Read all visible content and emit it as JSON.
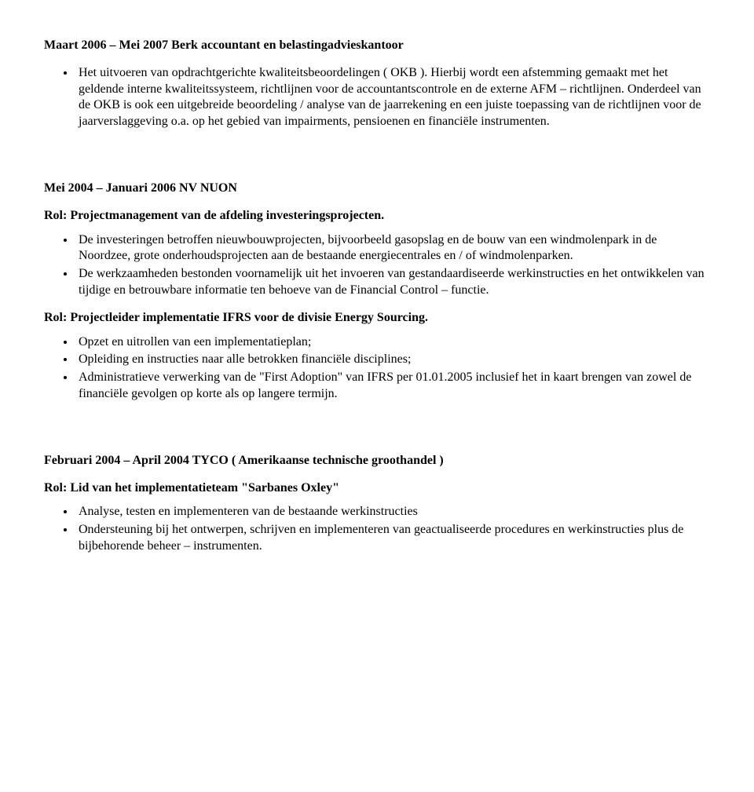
{
  "sections": [
    {
      "heading": "Maart 2006 – Mei 2007 Berk accountant en belastingadvieskantoor",
      "pre_bullets": [],
      "bullets": [
        "Het uitvoeren van opdrachtgerichte kwaliteitsbeoordelingen ( OKB ). Hierbij wordt een afstemming gemaakt met het geldende interne kwaliteitssysteem, richtlijnen voor de accountantscontrole en de externe AFM – richtlijnen. Onderdeel van de OKB is ook een uitgebreide beoordeling / analyse van de jaarrekening en een juiste toepassing van de richtlijnen voor de jaarverslaggeving o.a. op het gebied van impairments, pensioenen en financiële instrumenten."
      ]
    },
    {
      "heading": "Mei 2004 – Januari 2006 NV NUON",
      "roles": [
        {
          "role_heading": "Rol: Projectmanagement van de afdeling investeringsprojecten.",
          "bullets": [
            "De investeringen betroffen nieuwbouwprojecten, bijvoorbeeld gasopslag en de bouw van een windmolenpark in de Noordzee, grote onderhoudsprojecten aan de bestaande energiecentrales en / of windmolenparken.",
            "De werkzaamheden bestonden voornamelijk uit het invoeren van gestandaardiseerde werkinstructies en het ontwikkelen van tijdige en betrouwbare informatie ten behoeve van de Financial Control – functie."
          ]
        },
        {
          "role_heading": "Rol: Projectleider implementatie IFRS voor de divisie Energy Sourcing.",
          "bullets": [
            "Opzet en uitrollen van een implementatieplan;",
            "Opleiding en instructies naar alle betrokken financiële disciplines;",
            "Administratieve verwerking van de \"First Adoption\" van IFRS per 01.01.2005 inclusief het in kaart brengen van zowel de financiële gevolgen op korte als op langere termijn."
          ]
        }
      ]
    },
    {
      "heading": "Februari 2004 – April 2004 TYCO ( Amerikaanse technische groothandel )",
      "roles": [
        {
          "role_heading": "Rol: Lid van het implementatieteam \"Sarbanes Oxley\"",
          "bullets": [
            "Analyse, testen en implementeren van de bestaande werkinstructies",
            "Ondersteuning bij het ontwerpen, schrijven en implementeren van geactualiseerde procedures en werkinstructies plus de bijbehorende beheer – instrumenten."
          ]
        }
      ]
    }
  ]
}
